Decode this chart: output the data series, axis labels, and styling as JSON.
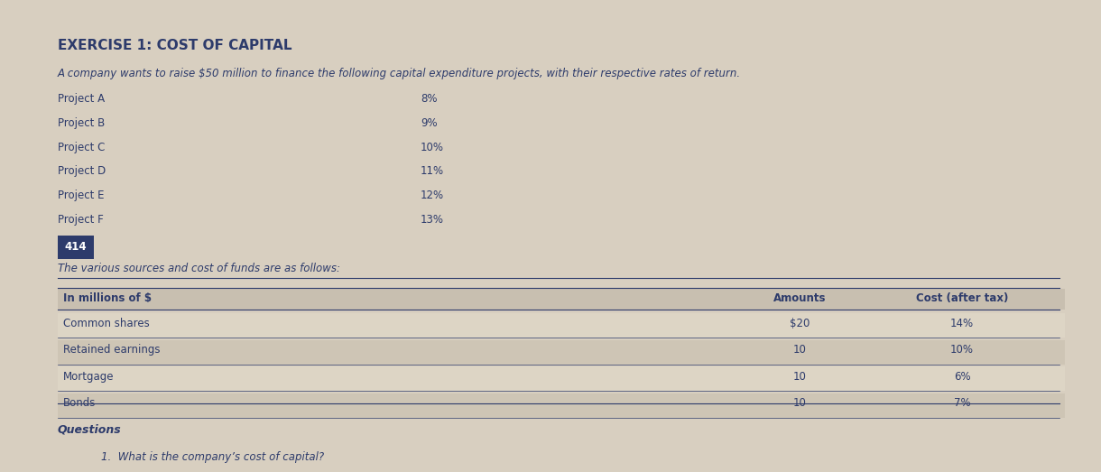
{
  "title": "EXERCISE 1: COST OF CAPITAL",
  "intro_text": "A company wants to raise $50 million to finance the following capital expenditure projects, with their respective rates of return.",
  "projects": [
    [
      "Project A",
      "8%"
    ],
    [
      "Project B",
      "9%"
    ],
    [
      "Project C",
      "10%"
    ],
    [
      "Project D",
      "11%"
    ],
    [
      "Project E",
      "12%"
    ],
    [
      "Project F",
      "13%"
    ]
  ],
  "highlight_label": "414",
  "sources_intro": "The various sources and cost of funds are as follows:",
  "table_header_col1": "In millions of $",
  "table_header_col2": "Amounts",
  "table_header_col3": "Cost (after tax)",
  "table_rows": [
    [
      "Common shares",
      "$20",
      "14%"
    ],
    [
      "Retained earnings",
      "10",
      "10%"
    ],
    [
      "Mortgage",
      "10",
      "6%"
    ],
    [
      "Bonds",
      "10",
      "7%"
    ]
  ],
  "questions_label": "Questions",
  "question_1": "1.  What is the company’s cost of capital?",
  "bg_color": "#d8cfc0",
  "text_color": "#2d3b6b",
  "header_row_bg": "#c8bfb0",
  "table_row_bg_light": "#ddd5c5",
  "table_row_bg_dark": "#cec5b5",
  "highlight_bg": "#2d3b6b",
  "highlight_fg": "#ffffff",
  "line_color": "#2d3b6b",
  "title_fontsize": 11,
  "body_fontsize": 8.5,
  "small_fontsize": 7.5
}
